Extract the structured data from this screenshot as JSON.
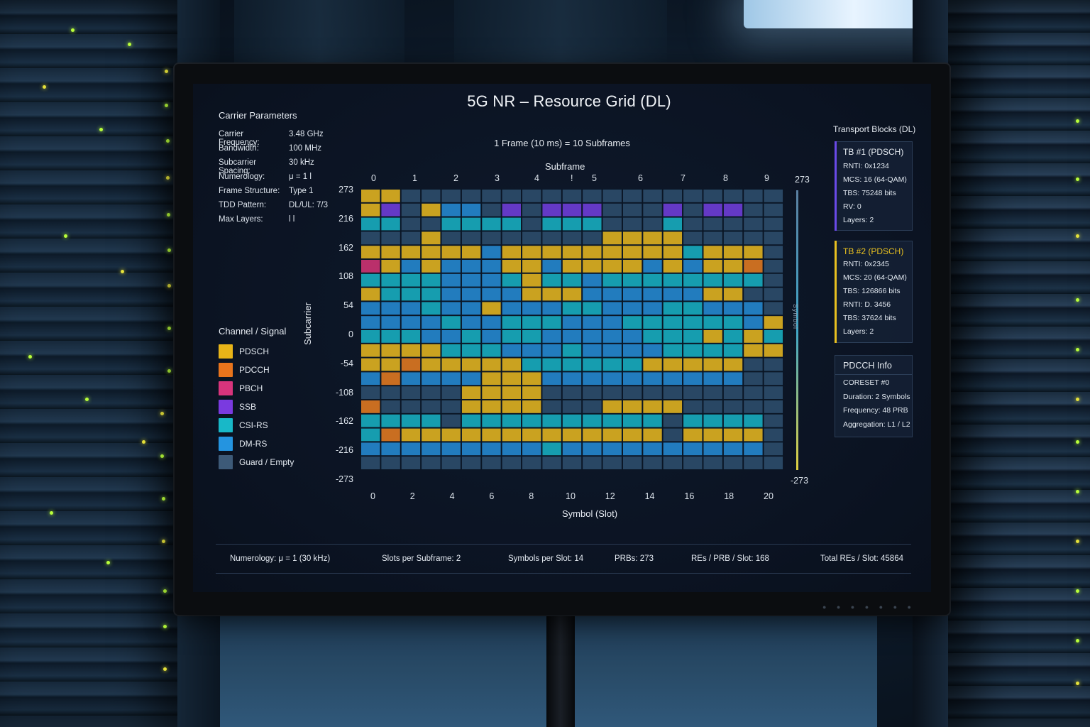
{
  "app": {
    "title": "5G NR – Resource Grid (DL)",
    "frame_caption": "1 Frame (10 ms) = 10 Subframes"
  },
  "carrier": {
    "heading": "Carrier Parameters",
    "rows": [
      {
        "label": "Carrier Frequency:",
        "value": "3.48 GHz"
      },
      {
        "label": "Bandwidth:",
        "value": "100 MHz"
      },
      {
        "label": "Subcarrier Spacing:",
        "value": "30 kHz"
      },
      {
        "label": "Numerology:",
        "value": "μ = 1 l"
      },
      {
        "label": "Frame Structure:",
        "value": "Type 1"
      },
      {
        "label": "TDD Pattern:",
        "value": "DL/UL: 7/3"
      },
      {
        "label": "Max Layers:",
        "value": "l l"
      }
    ]
  },
  "legend": {
    "heading": "Channel / Signal",
    "items": [
      {
        "label": "PDSCH",
        "color": "#e8b418"
      },
      {
        "label": "PDCCH",
        "color": "#e8741c"
      },
      {
        "label": "PBCH",
        "color": "#d8347c"
      },
      {
        "label": "SSB",
        "color": "#7a3ae0"
      },
      {
        "label": "CSI-RS",
        "color": "#18b8c8"
      },
      {
        "label": "DM-RS",
        "color": "#2494e0"
      },
      {
        "label": "Guard / Empty",
        "color": "#3d5a78"
      }
    ]
  },
  "grid": {
    "top_axis_title": "Subframe",
    "top_ticks": [
      "0",
      "1",
      "2",
      "3",
      "4",
      "!",
      "5",
      "6",
      "7",
      "8",
      "9"
    ],
    "y_axis_title": "Subcarrier",
    "y_ticks": [
      "273",
      "216",
      "162",
      "108",
      "54",
      "0",
      "-54",
      "-108",
      "-162",
      "-216",
      "-273"
    ],
    "x_axis_title": "Symbol (Slot)",
    "x_ticks": [
      "0",
      "2",
      "4",
      "6",
      "8",
      "10",
      "12",
      "14",
      "16",
      "18",
      "20"
    ],
    "right_top": "273",
    "right_bottom": "-273",
    "right_side_label": "Symbol",
    "rows": 20,
    "cols": 21
  },
  "transport": {
    "heading": "Transport Blocks (DL)",
    "tb1": {
      "title": "TB #1 (PDSCH)",
      "accent": "#6a4ae8",
      "lines": [
        "RNTI: 0x1234",
        "MCS: 16 (64-QAM)",
        "TBS: 75248 bits",
        "RV: 0",
        "Layers: 2"
      ]
    },
    "tb2": {
      "title": "TB #2 (PDSCH)",
      "accent": "#e8c020",
      "lines": [
        "RNTI: 0x2345",
        "MCS: 20 (64-QAM)",
        "TBS: 126866 bits",
        "RNTI: D. 3456",
        "TBS: 37624 bits",
        "Layers: 2"
      ]
    },
    "pdcch": {
      "title": "PDCCH Info",
      "lines": [
        "CORESET #0",
        "Duration: 2 Symbols",
        "Frequency: 48 PRB",
        "Aggregation: L1 / L2"
      ]
    }
  },
  "footer": {
    "numerology": "Numerology: μ = 1 (30 kHz)",
    "slots": "Slots per Subframe: 2",
    "symbols": "Symbols per Slot: 14",
    "prbs": "PRBs: 273",
    "res_prb": "REs / PRB / Slot: 168",
    "total": "Total REs / Slot: 45864"
  }
}
